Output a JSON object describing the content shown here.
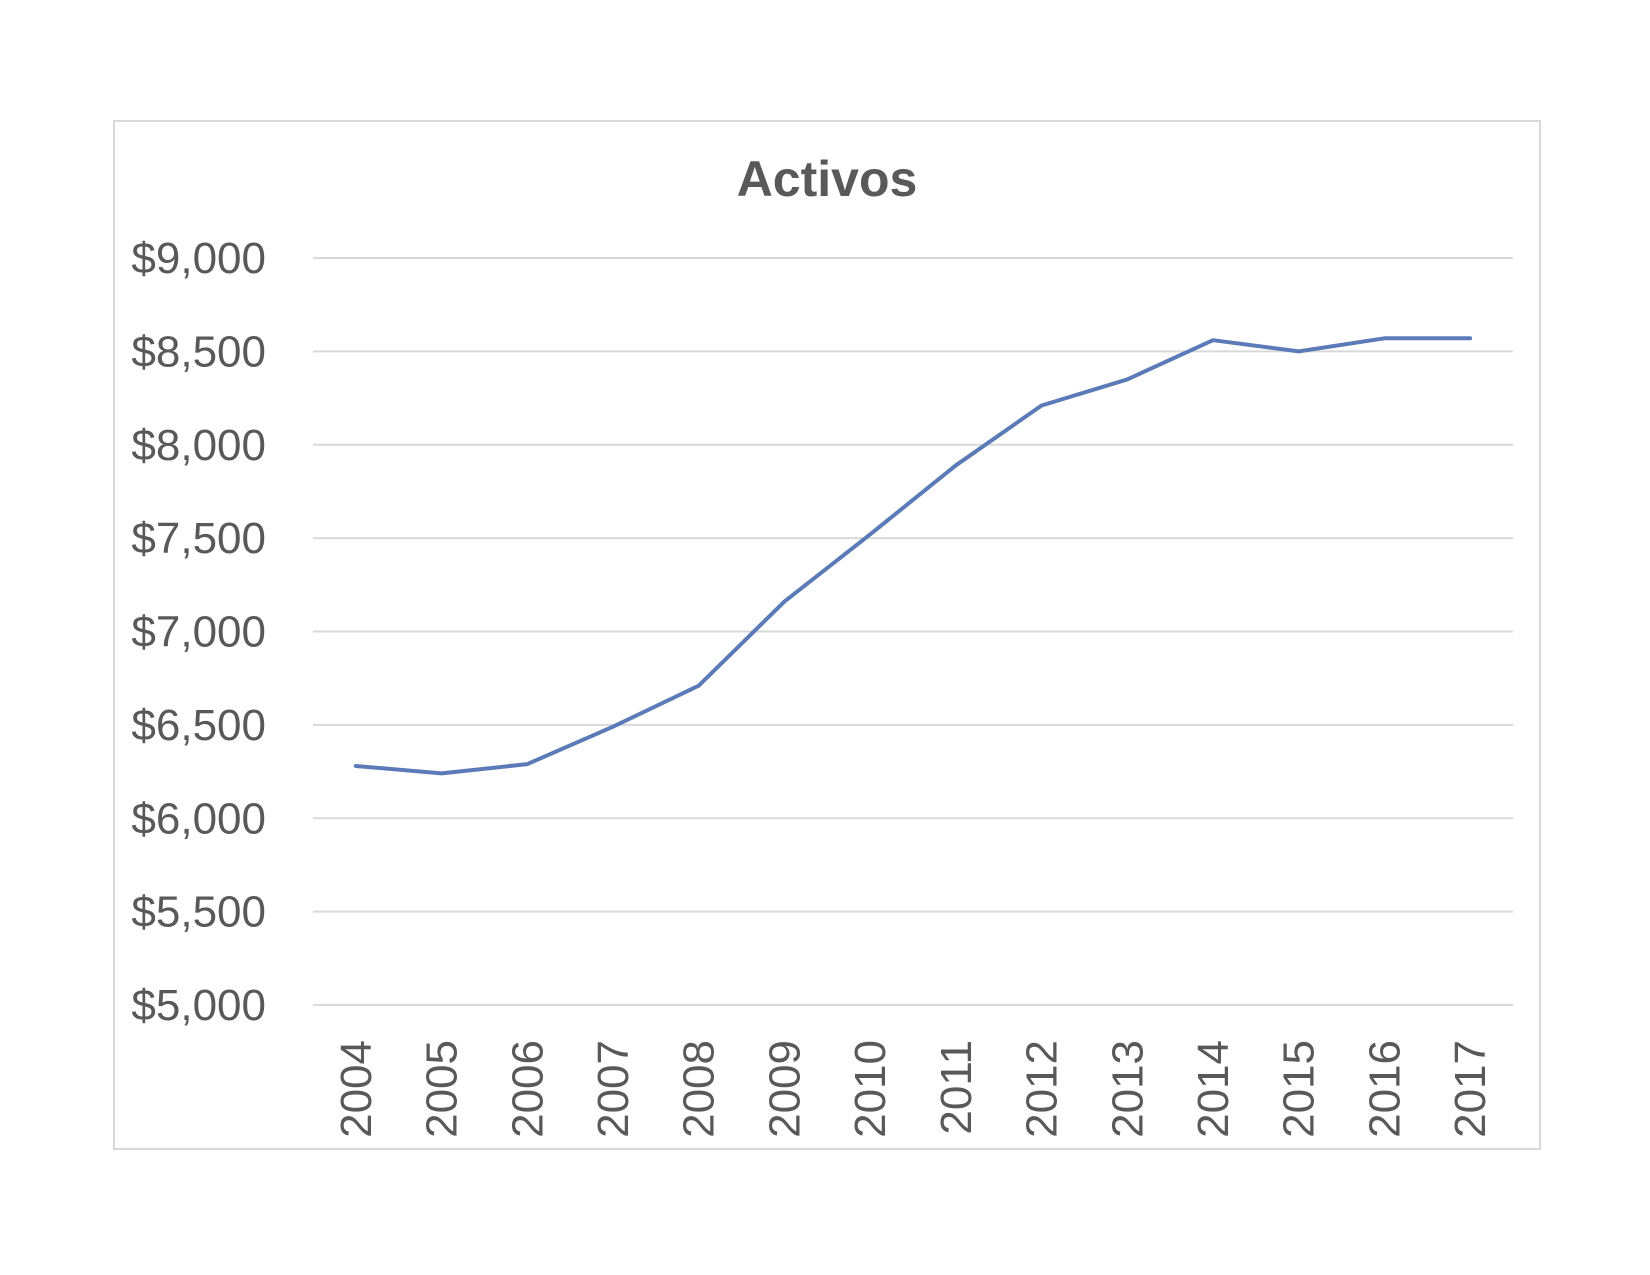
{
  "chart_data": {
    "type": "line",
    "title": "Activos",
    "xlabel": "",
    "ylabel": "",
    "categories": [
      "2004",
      "2005",
      "2006",
      "2007",
      "2008",
      "2009",
      "2010",
      "2011",
      "2012",
      "2013",
      "2014",
      "2015",
      "2016",
      "2017"
    ],
    "series": [
      {
        "values": [
          6280,
          6240,
          6290,
          6490,
          6710,
          7160,
          7520,
          7890,
          8210,
          8350,
          8560,
          8500,
          8570,
          8570
        ],
        "color": "#5b7bb8"
      }
    ],
    "ylim": [
      5000,
      9000
    ],
    "yticks": [
      5000,
      5500,
      6000,
      6500,
      7000,
      7500,
      8000,
      8500,
      9000
    ],
    "ytick_labels": [
      "$5,000",
      "$5,500",
      "$6,000",
      "$6,500",
      "$7,000",
      "$7,500",
      "$8,000",
      "$8,500",
      "$9,000"
    ],
    "grid": true,
    "legend": "none"
  }
}
